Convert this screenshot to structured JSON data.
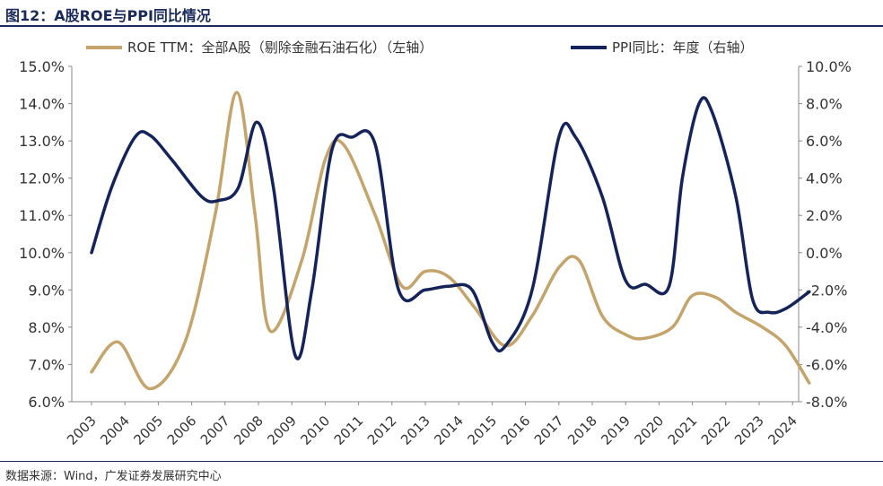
{
  "header": {
    "title": "图12：A股ROE与PPI同比情况"
  },
  "footer": {
    "source": "数据来源：Wind，广发证券发展研究中心"
  },
  "colors": {
    "roe": "#c4a46b",
    "ppi": "#14245a",
    "axis": "#888888"
  },
  "chart_data": {
    "type": "line",
    "title": "图12：A股ROE与PPI同比情况",
    "categories": [
      "2003",
      "2004",
      "2005",
      "2006",
      "2007",
      "2008",
      "2009",
      "2010",
      "2011",
      "2012",
      "2013",
      "2014",
      "2015",
      "2016",
      "2017",
      "2018",
      "2019",
      "2020",
      "2021",
      "2022",
      "2023",
      "2024"
    ],
    "grid": false,
    "legend_position": "top",
    "left_axis": {
      "ylim": [
        6.0,
        15.0
      ],
      "ticks": [
        "6.0%",
        "7.0%",
        "8.0%",
        "9.0%",
        "10.0%",
        "11.0%",
        "12.0%",
        "13.0%",
        "14.0%",
        "15.0%"
      ]
    },
    "right_axis": {
      "ylim": [
        -8.0,
        10.0
      ],
      "ticks": [
        "-8.0%",
        "-6.0%",
        "-4.0%",
        "-2.0%",
        "0.0%",
        "2.0%",
        "4.0%",
        "6.0%",
        "8.0%",
        "10.0%"
      ]
    },
    "series": [
      {
        "name": "ROE TTM：全部A股（剔除金融石油石化）（左轴）",
        "axis": "left",
        "unit": "%",
        "x": [
          2003.0,
          2003.8,
          2004.75,
          2005.8,
          2006.7,
          2007.35,
          2007.9,
          2008.35,
          2009.3,
          2010.0,
          2010.55,
          2011.5,
          2012.3,
          2013.0,
          2013.7,
          2014.5,
          2015.4,
          2016.2,
          2017.0,
          2017.6,
          2018.3,
          2019.0,
          2019.55,
          2020.4,
          2021.0,
          2021.7,
          2022.3,
          2023.1,
          2023.8,
          2024.5
        ],
        "y": [
          6.8,
          7.6,
          6.35,
          7.6,
          11.0,
          14.3,
          11.0,
          7.9,
          9.8,
          12.5,
          12.9,
          11.0,
          9.1,
          9.5,
          9.35,
          8.5,
          7.5,
          8.3,
          9.6,
          9.8,
          8.3,
          7.8,
          7.7,
          8.0,
          8.85,
          8.8,
          8.4,
          8.0,
          7.5,
          6.5
        ]
      },
      {
        "name": "PPI同比：年度（右轴）",
        "axis": "right",
        "unit": "%",
        "x": [
          2003.0,
          2003.6,
          2004.3,
          2004.75,
          2005.4,
          2006.3,
          2006.8,
          2007.4,
          2007.95,
          2008.45,
          2009.1,
          2009.6,
          2010.2,
          2010.8,
          2011.5,
          2012.2,
          2013.0,
          2013.7,
          2014.4,
          2015.0,
          2015.4,
          2016.2,
          2017.0,
          2017.5,
          2018.3,
          2019.0,
          2019.6,
          2020.3,
          2020.7,
          2021.2,
          2021.6,
          2022.3,
          2022.8,
          2023.3,
          2023.8,
          2024.5
        ],
        "y": [
          0.0,
          3.5,
          6.2,
          6.3,
          5.0,
          3.0,
          2.8,
          3.5,
          7.0,
          3.5,
          -5.5,
          -2.0,
          5.5,
          6.2,
          5.8,
          -2.0,
          -2.0,
          -1.8,
          -2.0,
          -4.8,
          -5.0,
          -2.0,
          6.2,
          6.2,
          3.0,
          -1.5,
          -1.7,
          -1.8,
          4.0,
          8.0,
          7.5,
          3.0,
          -2.5,
          -3.2,
          -3.0,
          -2.1
        ]
      }
    ]
  }
}
